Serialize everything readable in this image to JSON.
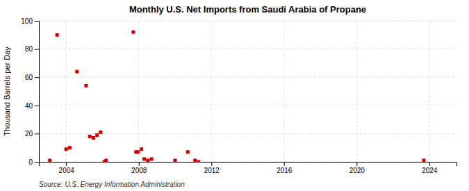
{
  "chart_data": {
    "type": "scatter",
    "title": "Monthly U.S. Net Imports from Saudi Arabia of Propane",
    "ylabel": "Thousand Barrels per Day",
    "source": "Source: U.S. Energy Information Administration",
    "x": [
      2003.1,
      2003.5,
      2004.0,
      2004.2,
      2004.6,
      2005.1,
      2005.3,
      2005.5,
      2005.7,
      2005.9,
      2006.1,
      2006.2,
      2007.7,
      2007.85,
      2007.95,
      2008.15,
      2008.3,
      2008.5,
      2008.7,
      2010.0,
      2010.7,
      2011.1,
      2011.3,
      2023.7
    ],
    "values": [
      1,
      90,
      9,
      10,
      64,
      54,
      18,
      17,
      19,
      21,
      0,
      1,
      92,
      7,
      7,
      9,
      2,
      1,
      2,
      1,
      7,
      1,
      0,
      1
    ],
    "color": "#cc0000",
    "marker": "square",
    "xlim": [
      2002.5,
      2025.5
    ],
    "xticks": [
      2004,
      2008,
      2012,
      2016,
      2020,
      2024
    ],
    "ylim": [
      0,
      100
    ],
    "yticks": [
      0,
      20,
      40,
      60,
      80,
      100
    ],
    "grid": true
  }
}
